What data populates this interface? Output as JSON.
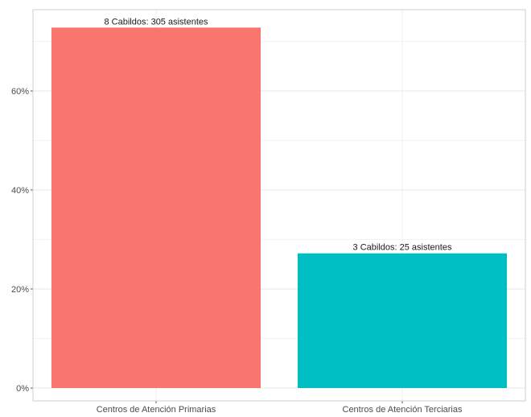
{
  "chart_data": {
    "type": "bar",
    "title": "",
    "xlabel": "",
    "ylabel": "",
    "categories": [
      "Centros de Atención Primarias",
      "Centros de Atención Terciarias"
    ],
    "values": [
      72.8,
      27.2
    ],
    "value_unit": "%",
    "data_labels": [
      "8 Cabildos: 305 asistentes",
      "3 Cabildos: 25 asistentes"
    ],
    "colors": [
      "#F8766D",
      "#00BFC4"
    ],
    "ylim": [
      0,
      76
    ],
    "y_ticks": [
      0,
      20,
      40,
      60
    ],
    "y_tick_labels": [
      "0%",
      "20%",
      "40%",
      "60%"
    ],
    "grid": true,
    "legend": "none",
    "panel_border": true
  }
}
